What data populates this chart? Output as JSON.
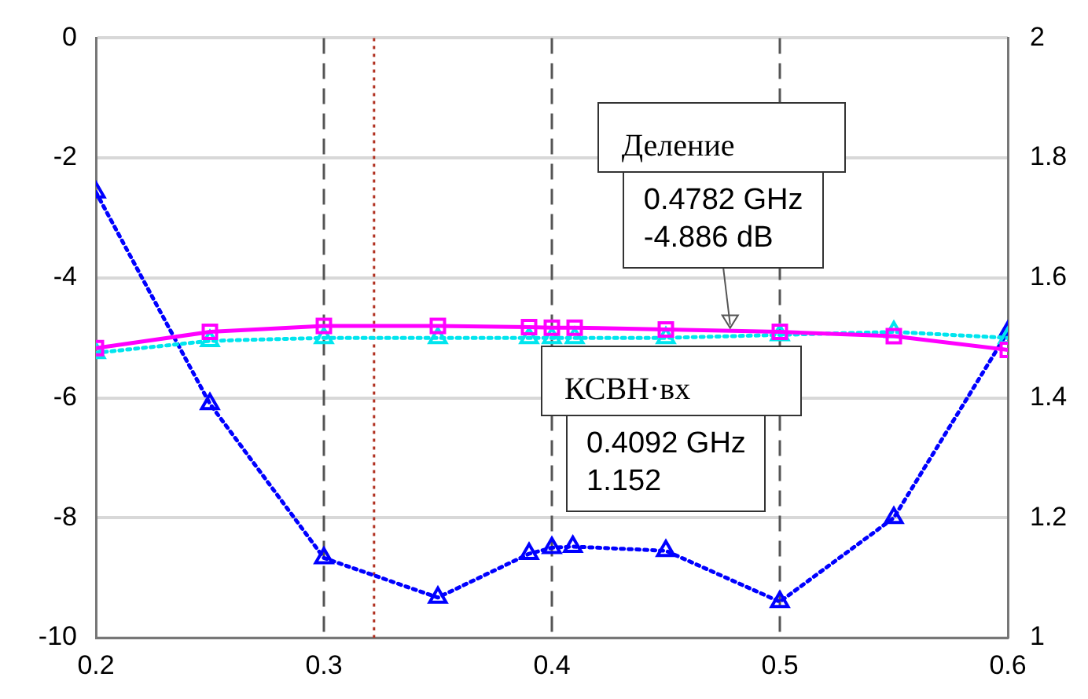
{
  "chart_data": {
    "type": "line",
    "xlim": [
      0.2,
      0.6
    ],
    "xticks": [
      0.2,
      0.3,
      0.4,
      0.5,
      0.6
    ],
    "ylim": [
      -10,
      0
    ],
    "yticks": [
      -10,
      -8,
      -6,
      -4,
      -2,
      0
    ],
    "y2lim": [
      1,
      2
    ],
    "y2ticks": [
      1,
      1.2,
      1.4,
      1.6,
      1.8,
      2
    ],
    "grid": "y",
    "legend": false,
    "series": [
      {
        "color": "#ff00ff",
        "marker": "square",
        "line_style": "solid",
        "x": [
          0.2,
          0.25,
          0.3,
          0.35,
          0.39,
          0.4,
          0.41,
          0.45,
          0.5,
          0.55,
          0.6
        ],
        "values": [
          -5.17,
          -4.9,
          -4.8,
          -4.8,
          -4.82,
          -4.83,
          -4.83,
          -4.86,
          -4.9,
          -4.97,
          -5.2
        ]
      },
      {
        "color": "#00e5ee",
        "marker": "triangle",
        "line_style": "dotted",
        "x": [
          0.2,
          0.25,
          0.3,
          0.35,
          0.39,
          0.4,
          0.41,
          0.45,
          0.5,
          0.55,
          0.6
        ],
        "values": [
          -5.25,
          -5.05,
          -5.0,
          -5.0,
          -5.0,
          -5.0,
          -5.0,
          -5.0,
          -4.95,
          -4.9,
          -5.0
        ]
      },
      {
        "color": "#0000ff",
        "marker": "triangle",
        "line_style": "dotted",
        "axis": "y2",
        "x": [
          0.2,
          0.25,
          0.3,
          0.35,
          0.39,
          0.4,
          0.4092,
          0.45,
          0.5,
          0.55,
          0.6
        ],
        "values": [
          1.743,
          1.39,
          1.133,
          1.067,
          1.14,
          1.15,
          1.152,
          1.145,
          1.06,
          1.2,
          1.51
        ]
      }
    ],
    "ref_lines": [
      {
        "axis": "x",
        "value": 0.3,
        "color": "#555555",
        "line_style": "dashed"
      },
      {
        "axis": "x",
        "value": 0.4,
        "color": "#555555",
        "line_style": "dashed"
      },
      {
        "axis": "x",
        "value": 0.5,
        "color": "#555555",
        "line_style": "dashed"
      },
      {
        "axis": "x",
        "value": 0.322,
        "color": "#b03020",
        "line_style": "dotted"
      }
    ],
    "annotations": [
      {
        "text": "Деление\n0.4782 GHz\n-4.886 dB",
        "x": 0.4782,
        "y": -4.886
      },
      "КСВН·вх\n0.4092 GHz\n1.152"
    ]
  }
}
